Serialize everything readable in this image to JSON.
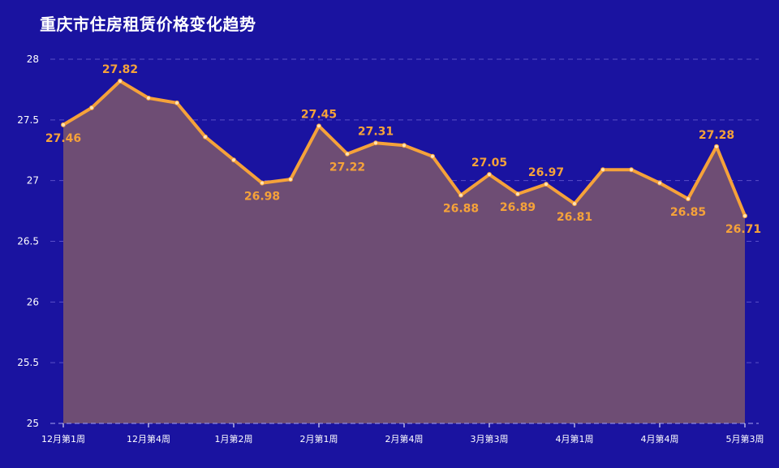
{
  "title": "重庆市住房租赁价格变化趋势",
  "colors": {
    "background": "#1a13a0",
    "line": "#f5a23a",
    "area": "#6e4d74",
    "grid": "#5a50c8",
    "text": "#ffffff"
  },
  "chart_data": {
    "type": "area",
    "title": "重庆市住房租赁价格变化趋势",
    "xlabel": "",
    "ylabel": "",
    "ylim": [
      25,
      28
    ],
    "yticks": [
      "25",
      "25.5",
      "26",
      "26.5",
      "27",
      "27.5",
      "28"
    ],
    "grid": true,
    "x_tick_labels": [
      "12月第1周",
      "12月第4周",
      "1月第2周",
      "2月第1周",
      "2月第4周",
      "3月第3周",
      "4月第1周",
      "4月第4周",
      "5月第3周"
    ],
    "values": [
      27.46,
      27.6,
      27.82,
      27.68,
      27.64,
      27.36,
      27.17,
      26.98,
      27.01,
      27.45,
      27.22,
      27.31,
      27.29,
      27.2,
      26.88,
      27.05,
      26.89,
      26.97,
      26.81,
      27.09,
      27.09,
      26.98,
      26.85,
      27.28,
      26.71
    ],
    "labeled_points": [
      {
        "index": 0,
        "label": "27.46"
      },
      {
        "index": 2,
        "label": "27.82"
      },
      {
        "index": 7,
        "label": "26.98"
      },
      {
        "index": 9,
        "label": "27.45"
      },
      {
        "index": 10,
        "label": "27.22"
      },
      {
        "index": 11,
        "label": "27.31"
      },
      {
        "index": 14,
        "label": "26.88"
      },
      {
        "index": 15,
        "label": "27.05"
      },
      {
        "index": 16,
        "label": "26.89"
      },
      {
        "index": 17,
        "label": "26.97"
      },
      {
        "index": 18,
        "label": "26.81"
      },
      {
        "index": 22,
        "label": "26.85"
      },
      {
        "index": 23,
        "label": "27.28"
      },
      {
        "index": 24,
        "label": "26.71"
      }
    ]
  }
}
